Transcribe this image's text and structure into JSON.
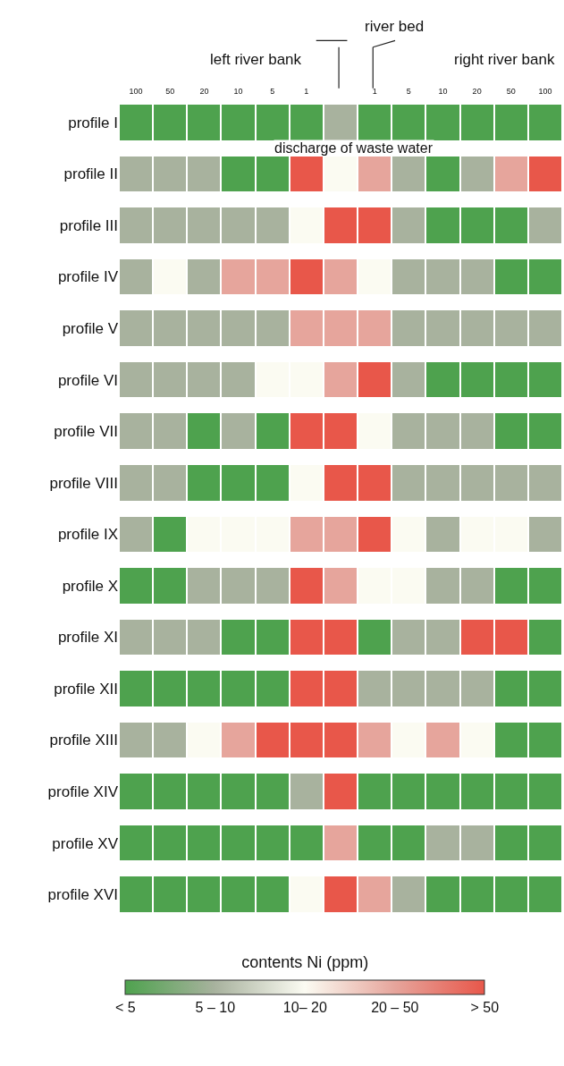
{
  "chart_data": {
    "type": "heatmap",
    "categories": [
      "100",
      "50",
      "20",
      "10",
      "5",
      "1",
      null,
      "1",
      "5",
      "10",
      "20",
      "50",
      "100"
    ],
    "y_categories": [
      "profile I",
      "profile II",
      "profile III",
      "profile IV",
      "profile V",
      "profile VI",
      "profile VII",
      "profile VIII",
      "profile IX",
      "profile X",
      "profile XI",
      "profile XII",
      "profile XIII",
      "profile XIV",
      "profile XV",
      "profile XVI"
    ],
    "cells": [
      [
        0,
        0,
        0,
        0,
        0,
        0,
        1,
        0,
        0,
        0,
        0,
        0,
        0
      ],
      [
        1,
        1,
        1,
        0,
        0,
        4,
        2,
        3,
        1,
        0,
        1,
        3,
        4
      ],
      [
        1,
        1,
        1,
        1,
        1,
        2,
        4,
        4,
        1,
        0,
        0,
        0,
        1
      ],
      [
        1,
        2,
        1,
        3,
        3,
        4,
        3,
        2,
        1,
        1,
        1,
        0,
        0
      ],
      [
        1,
        1,
        1,
        1,
        1,
        3,
        3,
        3,
        1,
        1,
        1,
        1,
        1
      ],
      [
        1,
        1,
        1,
        1,
        2,
        2,
        3,
        4,
        1,
        0,
        0,
        0,
        0
      ],
      [
        1,
        1,
        0,
        1,
        0,
        4,
        4,
        2,
        1,
        1,
        1,
        0,
        0
      ],
      [
        1,
        1,
        0,
        0,
        0,
        2,
        4,
        4,
        1,
        1,
        1,
        1,
        1
      ],
      [
        1,
        0,
        2,
        2,
        2,
        3,
        3,
        4,
        2,
        1,
        2,
        2,
        1
      ],
      [
        0,
        0,
        1,
        1,
        1,
        4,
        3,
        2,
        2,
        1,
        1,
        0,
        0
      ],
      [
        1,
        1,
        1,
        0,
        0,
        4,
        4,
        0,
        1,
        1,
        4,
        4,
        0
      ],
      [
        0,
        0,
        0,
        0,
        0,
        4,
        4,
        1,
        1,
        1,
        1,
        0,
        0
      ],
      [
        1,
        1,
        2,
        3,
        4,
        4,
        4,
        3,
        2,
        3,
        2,
        0,
        0
      ],
      [
        0,
        0,
        0,
        0,
        0,
        1,
        4,
        0,
        0,
        0,
        0,
        0,
        0
      ],
      [
        0,
        0,
        0,
        0,
        0,
        0,
        3,
        0,
        0,
        1,
        1,
        0,
        0
      ],
      [
        0,
        0,
        0,
        0,
        0,
        2,
        4,
        3,
        1,
        0,
        0,
        0,
        0
      ]
    ],
    "colors": [
      "#4ea24e",
      "#a8b29e",
      "#fbfbf2",
      "#e6a59c",
      "#e8574a"
    ],
    "clim": [
      0,
      4
    ],
    "cticks": [
      {
        "value": 0,
        "label": "< 5"
      },
      {
        "value": 1,
        "label": "5 – 10"
      },
      {
        "value": 2,
        "label": "10– 20"
      },
      {
        "value": 3,
        "label": "20 – 50"
      },
      {
        "value": 4,
        "label": "> 50"
      }
    ],
    "clabel": "contents Ni (ppm)",
    "annotations": [
      "left river bank",
      "river bed",
      "right river bank",
      "discharge of waste water"
    ]
  }
}
